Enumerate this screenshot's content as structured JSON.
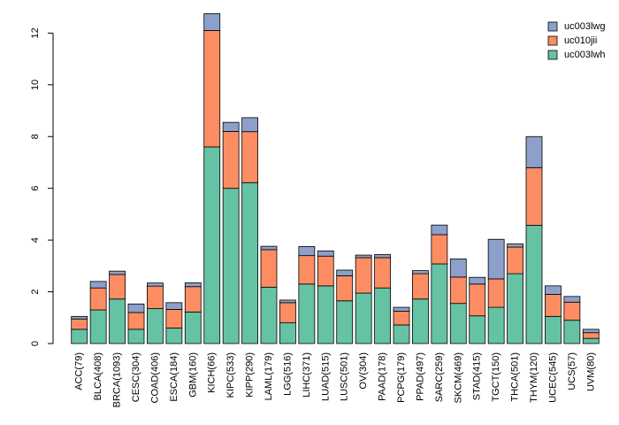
{
  "chart_data": {
    "type": "bar",
    "stacked": true,
    "title": "",
    "xlabel": "",
    "ylabel": "",
    "ylim": [
      0,
      12.8
    ],
    "yticks": [
      0,
      2,
      4,
      6,
      8,
      10,
      12
    ],
    "grid": false,
    "legend_position": "top-right",
    "categories": [
      "ACC(79)",
      "BLCA(408)",
      "BRCA(1093)",
      "CESC(304)",
      "COAD(406)",
      "ESCA(184)",
      "GBM(160)",
      "KICH(66)",
      "KIPC(533)",
      "KIPP(290)",
      "LAML(179)",
      "LGG(516)",
      "LIHC(371)",
      "LUAD(515)",
      "LUSC(501)",
      "OV(304)",
      "PAAD(178)",
      "PCPG(179)",
      "PPAD(497)",
      "SARC(259)",
      "SKCM(469)",
      "STAD(415)",
      "TGCT(150)",
      "THCA(501)",
      "THYM(120)",
      "UCEC(545)",
      "UCS(57)",
      "UVM(80)"
    ],
    "series": [
      {
        "name": "uc003lwh",
        "color": "#66C2A5",
        "values": [
          0.55,
          1.3,
          1.72,
          0.55,
          1.35,
          0.6,
          1.22,
          7.6,
          6.0,
          6.22,
          2.18,
          0.8,
          2.3,
          2.23,
          1.65,
          1.95,
          2.15,
          0.72,
          1.72,
          3.08,
          1.55,
          1.07,
          1.4,
          2.7,
          4.57,
          1.05,
          0.9,
          0.2
        ]
      },
      {
        "name": "uc010jii",
        "color": "#FC8D62",
        "values": [
          0.4,
          0.85,
          0.95,
          0.65,
          0.87,
          0.72,
          0.98,
          4.5,
          2.2,
          1.97,
          1.45,
          0.78,
          1.1,
          1.15,
          0.97,
          1.37,
          1.17,
          0.53,
          0.98,
          1.13,
          1.02,
          1.23,
          1.1,
          1.03,
          2.23,
          0.85,
          0.7,
          0.22
        ]
      },
      {
        "name": "uc003lwg",
        "color": "#8DA0CB",
        "values": [
          0.1,
          0.25,
          0.13,
          0.33,
          0.12,
          0.26,
          0.15,
          0.65,
          0.35,
          0.54,
          0.13,
          0.1,
          0.35,
          0.2,
          0.22,
          0.1,
          0.12,
          0.15,
          0.12,
          0.37,
          0.7,
          0.26,
          1.53,
          0.12,
          1.2,
          0.33,
          0.22,
          0.13
        ]
      }
    ]
  }
}
